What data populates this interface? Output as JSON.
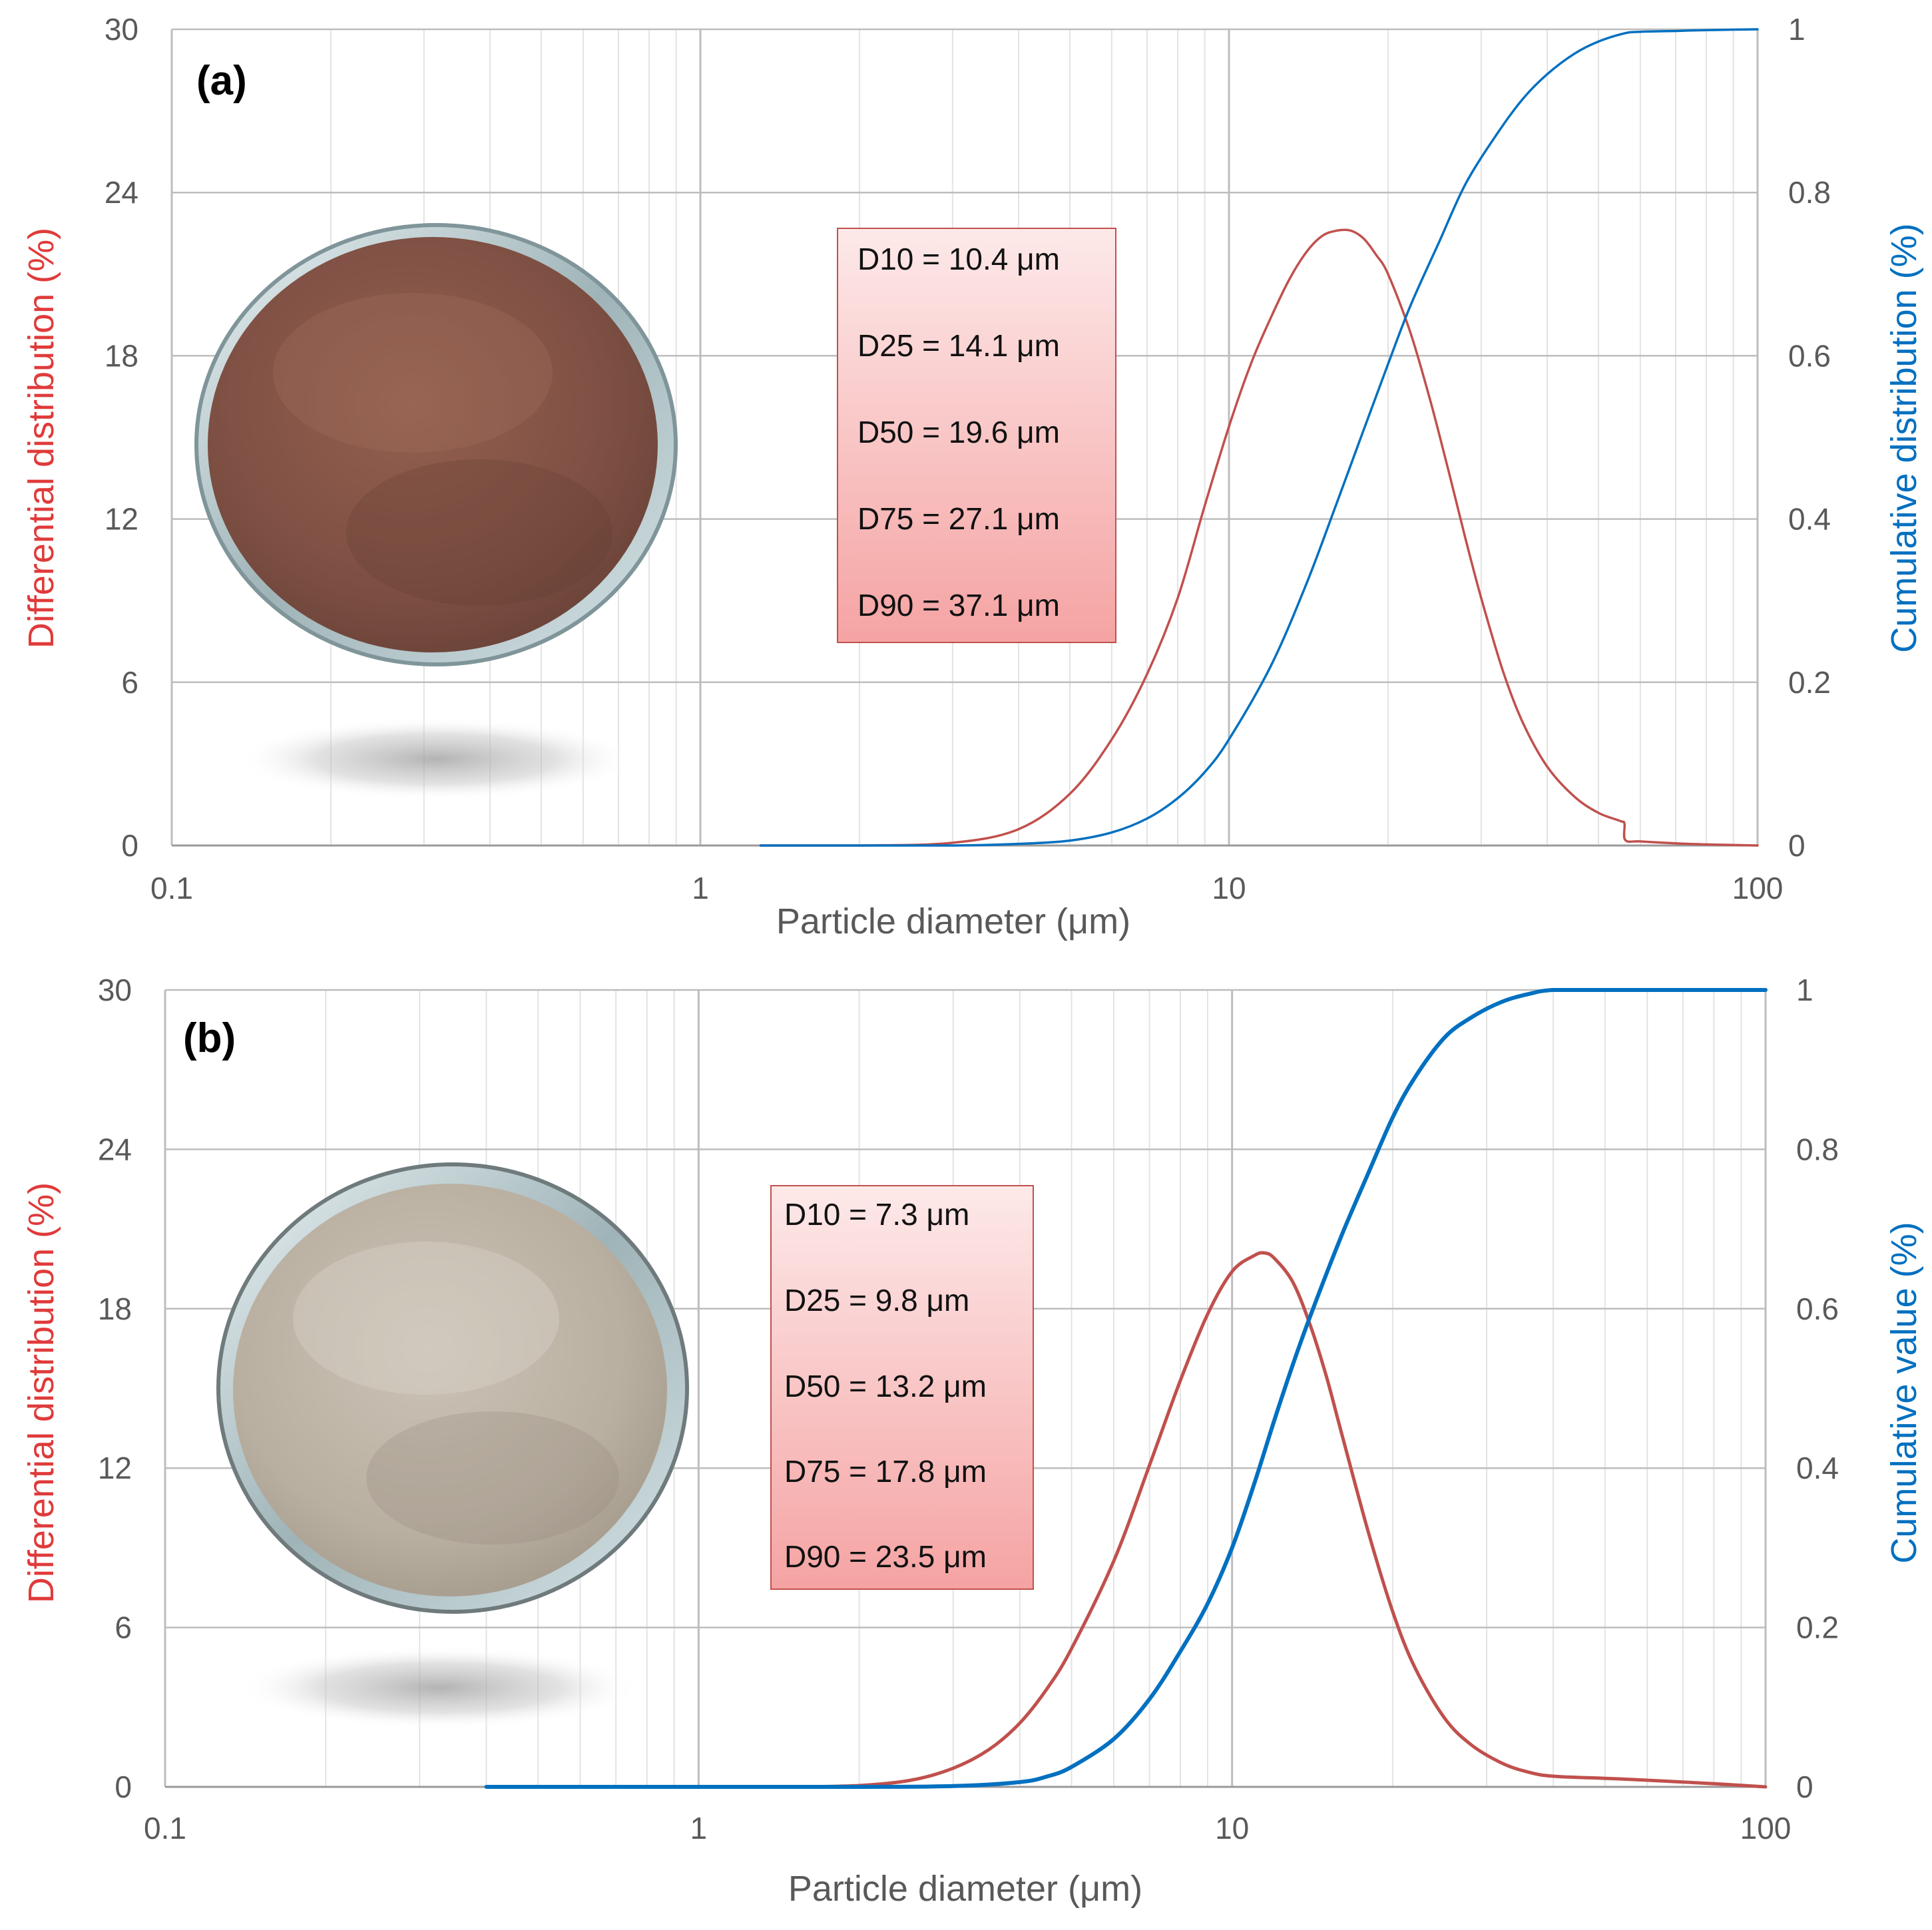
{
  "colors": {
    "differential": "#c0504d",
    "cumulative": "#0070c0",
    "grid_major": "#bdbdbd",
    "grid_minor": "#e3e3e3",
    "tick_text": "#595959",
    "box_fill_top": "#fde9e9",
    "box_fill_bottom": "#f5a3a3",
    "box_border": "#c0504d",
    "powder_a": "#8b5a4c",
    "powder_b": "#c2b8a9"
  },
  "chart_data": [
    {
      "type": "line",
      "panel_label": "(a)",
      "title": "",
      "xlabel": "Particle diameter (μm)",
      "ylabel_left": "Differential distribution (%)",
      "ylabel_right": "Cumulative distribution (%)",
      "x_scale": "log",
      "xlim": [
        0.1,
        100
      ],
      "x_ticks": [
        "0.1",
        "1",
        "10",
        "100"
      ],
      "ylim_left": [
        0,
        30
      ],
      "y_ticks_left": [
        "0",
        "6",
        "12",
        "18",
        "24",
        "30"
      ],
      "ylim_right": [
        0,
        1
      ],
      "y_ticks_right": [
        "0",
        "0.2",
        "0.4",
        "0.6",
        "0.8",
        "1"
      ],
      "grid": true,
      "stats": [
        "D10 = 10.4 μm",
        "D25 = 14.1 μm",
        "D50 = 19.6 μm",
        "D75 = 27.1 μm",
        "D90 = 37.1 μm"
      ],
      "series": [
        {
          "name": "Differential distribution",
          "axis": "left",
          "x": [
            1.3,
            2,
            3,
            4,
            5,
            6,
            7,
            8,
            9,
            10,
            11,
            12,
            13,
            14,
            15,
            16,
            17,
            18,
            19,
            20,
            22,
            24,
            26,
            28,
            30,
            33,
            36,
            40,
            45,
            50,
            55,
            56,
            56.2,
            60,
            70,
            80,
            100
          ],
          "values": [
            0,
            0,
            0.1,
            0.6,
            1.9,
            3.9,
            6.3,
            9.1,
            12.5,
            15.4,
            17.7,
            19.4,
            20.8,
            21.8,
            22.4,
            22.6,
            22.6,
            22.3,
            21.7,
            21.0,
            18.9,
            16.4,
            13.8,
            11.3,
            9.1,
            6.4,
            4.5,
            2.9,
            1.8,
            1.2,
            0.9,
            0.8,
            0.2,
            0.15,
            0.08,
            0.04,
            0
          ]
        },
        {
          "name": "Cumulative distribution",
          "axis": "right",
          "x": [
            1.3,
            2,
            3,
            4,
            5,
            6,
            7,
            8,
            9,
            10,
            12,
            14,
            16,
            18,
            20,
            22,
            25,
            28,
            32,
            36,
            40,
            45,
            50,
            56,
            60,
            70,
            80,
            100
          ],
          "values": [
            0,
            0,
            0,
            0.002,
            0.006,
            0.016,
            0.033,
            0.058,
            0.09,
            0.13,
            0.22,
            0.32,
            0.42,
            0.51,
            0.59,
            0.66,
            0.74,
            0.81,
            0.87,
            0.915,
            0.945,
            0.97,
            0.985,
            0.995,
            0.997,
            0.998,
            0.999,
            1.0
          ]
        }
      ]
    },
    {
      "type": "line",
      "panel_label": "(b)",
      "title": "",
      "xlabel": "Particle diameter (μm)",
      "ylabel_left": "Differential distribution (%)",
      "ylabel_right": "Cumulative value (%)",
      "x_scale": "log",
      "xlim": [
        0.1,
        100
      ],
      "x_ticks": [
        "0.1",
        "1",
        "10",
        "100"
      ],
      "ylim_left": [
        0,
        30
      ],
      "y_ticks_left": [
        "0",
        "6",
        "12",
        "18",
        "24",
        "30"
      ],
      "ylim_right": [
        0,
        1
      ],
      "y_ticks_right": [
        "0",
        "0.2",
        "0.4",
        "0.6",
        "0.8",
        "1"
      ],
      "grid": true,
      "stats": [
        "D10 = 7.3 μm",
        "D25 = 9.8 μm",
        "D50 = 13.2 μm",
        "D75 = 17.8 μm",
        "D90 = 23.5 μm"
      ],
      "series": [
        {
          "name": "Differential distribution",
          "axis": "left",
          "x": [
            1.5,
            2,
            2.5,
            3,
            3.5,
            4,
            4.5,
            5,
            6,
            7,
            8,
            9,
            10,
            11,
            11.5,
            12,
            13,
            14,
            15,
            16,
            18,
            20,
            22,
            25,
            28,
            32,
            36,
            40,
            50,
            60,
            80,
            100
          ],
          "values": [
            0,
            0.05,
            0.25,
            0.7,
            1.4,
            2.4,
            3.7,
            5.2,
            8.5,
            12.1,
            15.3,
            17.8,
            19.4,
            20.0,
            20.1,
            19.9,
            19.0,
            17.4,
            15.5,
            13.4,
            9.6,
            6.6,
            4.5,
            2.6,
            1.6,
            0.9,
            0.55,
            0.4,
            0.32,
            0.25,
            0.12,
            0
          ]
        },
        {
          "name": "Cumulative value",
          "axis": "right",
          "x": [
            0.4,
            1,
            2,
            3,
            4,
            4.5,
            5,
            6,
            7,
            8,
            9,
            10,
            11,
            12,
            13,
            14,
            16,
            18,
            20,
            22,
            25,
            28,
            32,
            36,
            40,
            50,
            100
          ],
          "values": [
            0,
            0,
            0,
            0.001,
            0.006,
            0.013,
            0.025,
            0.06,
            0.11,
            0.17,
            0.23,
            0.3,
            0.38,
            0.46,
            0.53,
            0.59,
            0.69,
            0.77,
            0.84,
            0.89,
            0.94,
            0.965,
            0.985,
            0.995,
            1.0,
            1.0,
            1.0
          ]
        }
      ]
    }
  ]
}
